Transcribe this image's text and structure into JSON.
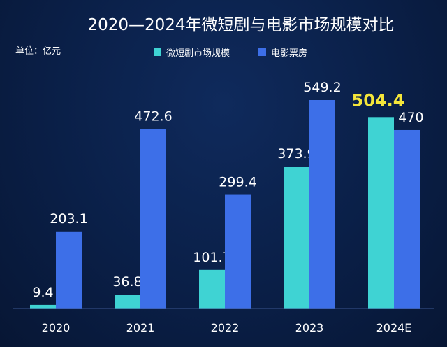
{
  "chart_data": {
    "type": "bar",
    "title": "2020—2024年微短剧与电影市场规模对比",
    "unit": "单位：亿元",
    "categories": [
      "2020",
      "2021",
      "2022",
      "2023",
      "2024E"
    ],
    "series": [
      {
        "name": "微短剧市场规模",
        "values": [
          9.4,
          36.8,
          101.7,
          373.9,
          504.4
        ],
        "labels": [
          "9.4",
          "36.8",
          "101.7",
          "373.9",
          "504.4"
        ],
        "color": "#3fd3d3"
      },
      {
        "name": "电影票房",
        "values": [
          203.1,
          472.6,
          299.4,
          549.2,
          470
        ],
        "labels": [
          "203.1",
          "472.6",
          "299.4",
          "549.2",
          "470"
        ],
        "color": "#3d6fe8"
      }
    ],
    "highlight": {
      "series": 0,
      "index": 4,
      "color": "#f5e63a"
    },
    "ylim": [
      0,
      549.2
    ],
    "grid": false,
    "legend": "top-center"
  }
}
